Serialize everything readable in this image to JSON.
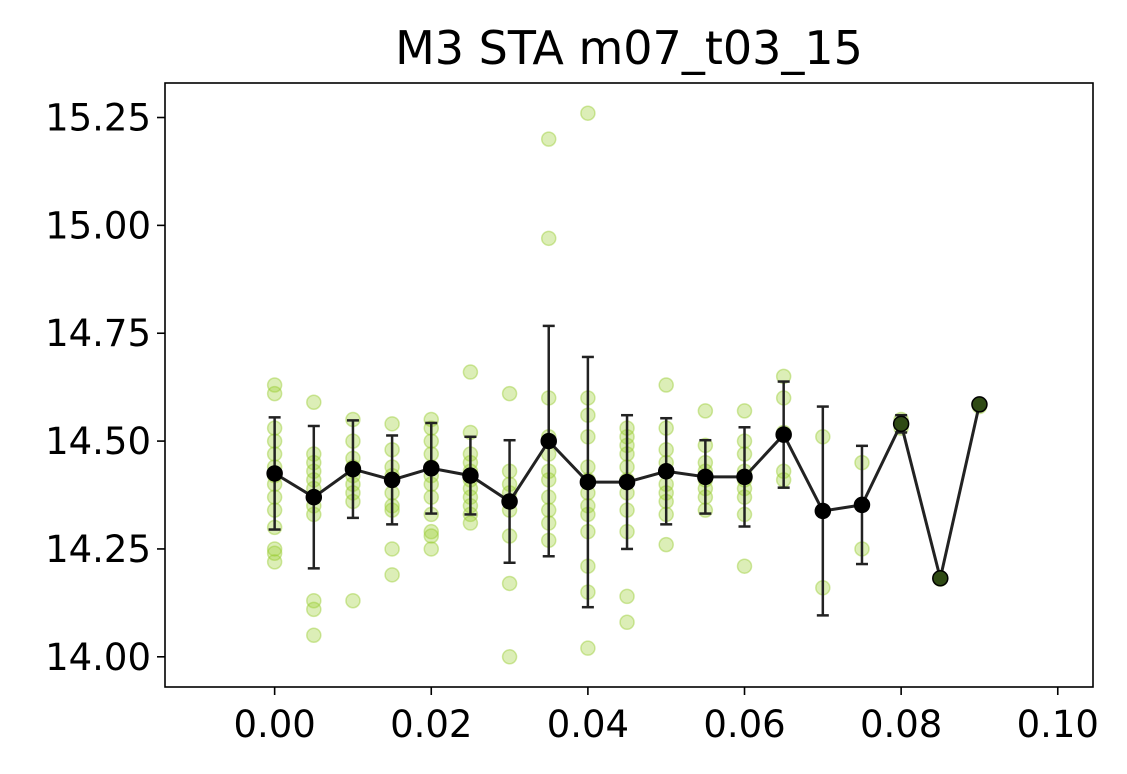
{
  "chart_data": {
    "type": "scatter",
    "title": "M3 STA m07_t03_15",
    "xlabel": "",
    "ylabel": "",
    "xlim": [
      -0.014,
      0.1045
    ],
    "ylim": [
      13.93,
      15.33
    ],
    "x_ticks": [
      0.0,
      0.02,
      0.04,
      0.06,
      0.08,
      0.1
    ],
    "x_tick_labels": [
      "0.00",
      "0.02",
      "0.04",
      "0.06",
      "0.08",
      "0.10"
    ],
    "y_ticks": [
      14.0,
      14.25,
      14.5,
      14.75,
      15.0,
      15.25
    ],
    "y_tick_labels": [
      "14.00",
      "14.25",
      "14.50",
      "14.75",
      "15.00",
      "15.25"
    ],
    "grid": false,
    "colors": {
      "raw_points": "#9acd32",
      "mean_line": "#222222",
      "mean_points": "#000000"
    },
    "raw_points": [
      {
        "x": 0.0,
        "y": [
          14.63,
          14.61,
          14.53,
          14.5,
          14.47,
          14.44,
          14.42,
          14.4,
          14.37,
          14.34,
          14.3,
          14.25,
          14.24,
          14.22
        ]
      },
      {
        "x": 0.005,
        "y": [
          14.59,
          14.47,
          14.45,
          14.43,
          14.41,
          14.39,
          14.37,
          14.35,
          14.33,
          14.13,
          14.11,
          14.05
        ]
      },
      {
        "x": 0.01,
        "y": [
          14.55,
          14.5,
          14.46,
          14.44,
          14.42,
          14.4,
          14.38,
          14.36,
          14.13
        ]
      },
      {
        "x": 0.015,
        "y": [
          14.54,
          14.48,
          14.44,
          14.42,
          14.41,
          14.38,
          14.35,
          14.34,
          14.25,
          14.19
        ]
      },
      {
        "x": 0.02,
        "y": [
          14.55,
          14.53,
          14.5,
          14.47,
          14.44,
          14.42,
          14.4,
          14.37,
          14.33,
          14.29,
          14.28,
          14.25
        ]
      },
      {
        "x": 0.025,
        "y": [
          14.66,
          14.52,
          14.47,
          14.45,
          14.43,
          14.41,
          14.39,
          14.37,
          14.35,
          14.33,
          14.31
        ]
      },
      {
        "x": 0.03,
        "y": [
          14.61,
          14.43,
          14.4,
          14.38,
          14.36,
          14.34,
          14.28,
          14.17,
          14.0
        ]
      },
      {
        "x": 0.035,
        "y": [
          15.2,
          14.97,
          14.6,
          14.51,
          14.47,
          14.43,
          14.41,
          14.37,
          14.34,
          14.31,
          14.27
        ]
      },
      {
        "x": 0.04,
        "y": [
          15.26,
          14.6,
          14.56,
          14.51,
          14.44,
          14.41,
          14.38,
          14.35,
          14.33,
          14.29,
          14.21,
          14.15,
          14.02
        ]
      },
      {
        "x": 0.045,
        "y": [
          14.53,
          14.51,
          14.49,
          14.47,
          14.44,
          14.41,
          14.38,
          14.34,
          14.29,
          14.14,
          14.08
        ]
      },
      {
        "x": 0.05,
        "y": [
          14.63,
          14.53,
          14.48,
          14.45,
          14.43,
          14.4,
          14.38,
          14.36,
          14.33,
          14.26
        ]
      },
      {
        "x": 0.055,
        "y": [
          14.57,
          14.49,
          14.45,
          14.43,
          14.41,
          14.39,
          14.37,
          14.34
        ]
      },
      {
        "x": 0.06,
        "y": [
          14.57,
          14.5,
          14.47,
          14.43,
          14.41,
          14.39,
          14.37,
          14.33,
          14.21
        ]
      },
      {
        "x": 0.065,
        "y": [
          14.65,
          14.6,
          14.52,
          14.43,
          14.41
        ]
      },
      {
        "x": 0.07,
        "y": [
          14.51,
          14.16
        ]
      },
      {
        "x": 0.075,
        "y": [
          14.45,
          14.25
        ]
      },
      {
        "x": 0.08,
        "y": [
          14.55,
          14.53
        ]
      },
      {
        "x": 0.085,
        "y": [
          14.18
        ]
      },
      {
        "x": 0.09,
        "y": [
          14.58
        ]
      }
    ],
    "series": [
      {
        "x": [
          0.0,
          0.005,
          0.01,
          0.015,
          0.02,
          0.025,
          0.03,
          0.035,
          0.04,
          0.045,
          0.05,
          0.055,
          0.06,
          0.065,
          0.07,
          0.075,
          0.08,
          0.085,
          0.09
        ],
        "y": [
          14.425,
          14.37,
          14.435,
          14.41,
          14.437,
          14.42,
          14.36,
          14.5,
          14.405,
          14.405,
          14.43,
          14.417,
          14.417,
          14.515,
          14.338,
          14.352,
          14.54,
          14.182,
          14.585
        ],
        "err": [
          0.13,
          0.165,
          0.113,
          0.103,
          0.105,
          0.09,
          0.142,
          0.267,
          0.29,
          0.155,
          0.123,
          0.085,
          0.115,
          0.123,
          0.242,
          0.137,
          0.02,
          0.0,
          0.0
        ]
      }
    ]
  }
}
